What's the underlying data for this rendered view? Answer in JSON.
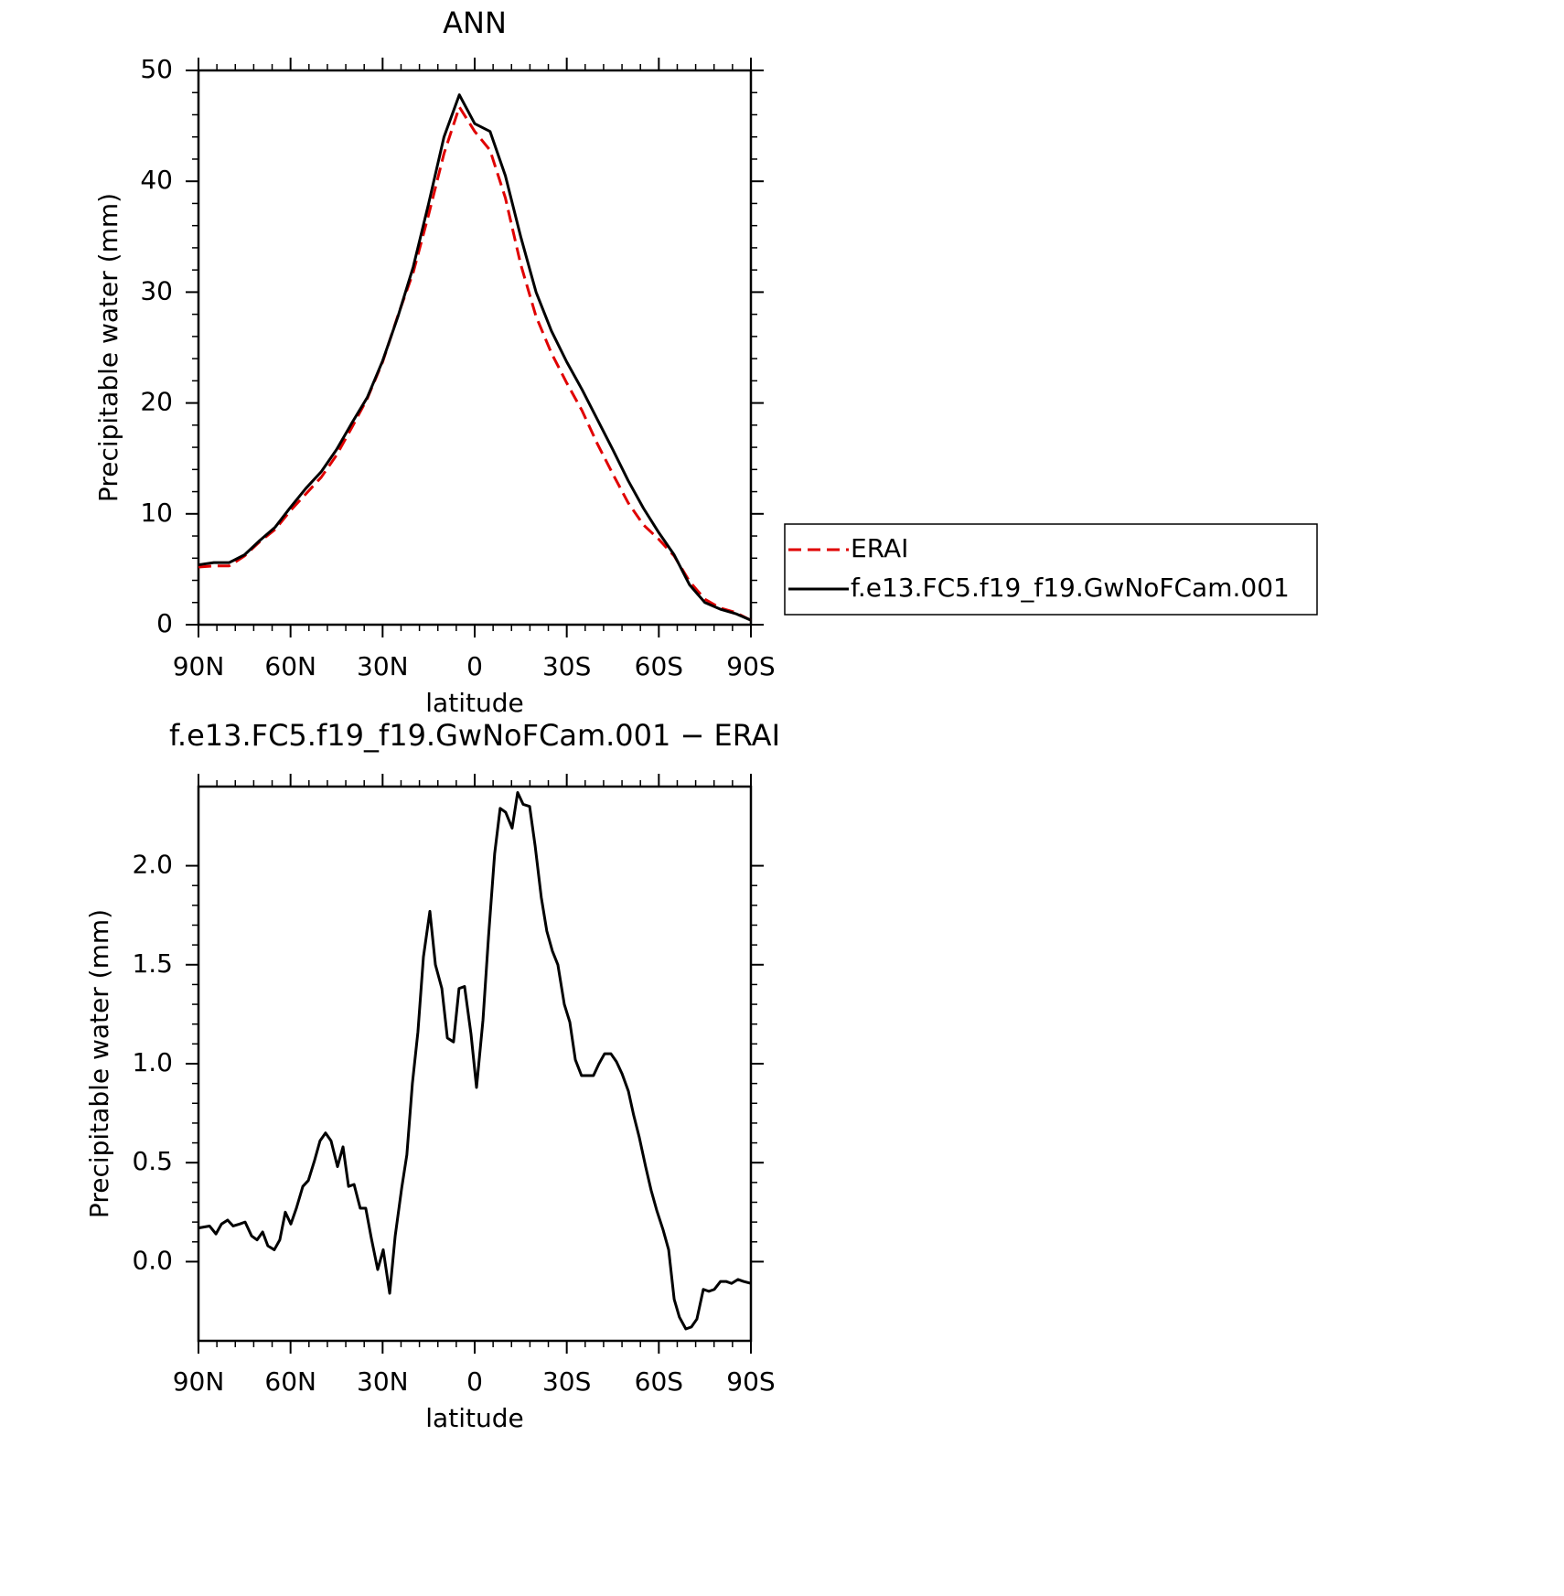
{
  "chart_data": [
    {
      "type": "line",
      "title": "ANN",
      "xlabel": "latitude",
      "ylabel": "Precipitable water (mm)",
      "x": [
        90,
        85,
        80,
        75,
        70,
        65,
        60,
        55,
        50,
        45,
        40,
        35,
        30,
        25,
        20,
        15,
        10,
        5,
        0,
        -5,
        -10,
        -15,
        -20,
        -25,
        -30,
        -35,
        -40,
        -45,
        -50,
        -55,
        -60,
        -65,
        -70,
        -75,
        -80,
        -85,
        -90
      ],
      "xlim": [
        90,
        -90
      ],
      "xticks": [
        {
          "value": 90,
          "label": "90N"
        },
        {
          "value": 60,
          "label": "60N"
        },
        {
          "value": 30,
          "label": "30N"
        },
        0,
        {
          "value": -30,
          "label": "30S"
        },
        {
          "value": -60,
          "label": "60S"
        },
        {
          "value": -90,
          "label": "90S"
        }
      ],
      "ylim": [
        0,
        50
      ],
      "yticks": [
        0,
        10,
        20,
        30,
        40,
        50
      ],
      "legend": "right",
      "series": [
        {
          "name": "ERAI",
          "color": "#e00000",
          "style": "dashed",
          "values": [
            5.2,
            5.3,
            5.3,
            6.2,
            7.5,
            8.6,
            10.3,
            11.8,
            13.3,
            15.3,
            17.8,
            20.4,
            23.7,
            27.9,
            31.8,
            37,
            42.5,
            46.7,
            44.5,
            42.8,
            38.5,
            32.5,
            27.8,
            24.5,
            21.8,
            19.3,
            16.3,
            13.6,
            11,
            9,
            7.7,
            6.2,
            3.9,
            2.3,
            1.5,
            1.1,
            0.4
          ]
        },
        {
          "name": "f.e13.FC5.f19_f19.GwNoFCam.001",
          "color": "#000000",
          "style": "solid",
          "values": [
            5.4,
            5.6,
            5.6,
            6.3,
            7.6,
            8.8,
            10.6,
            12.3,
            13.8,
            15.8,
            18.2,
            20.5,
            23.8,
            27.8,
            32.3,
            38,
            44,
            47.8,
            45.2,
            44.5,
            40.5,
            35,
            30,
            26.5,
            23.7,
            21.2,
            18.5,
            15.8,
            13,
            10.5,
            8.3,
            6.3,
            3.6,
            2.0,
            1.4,
            1.0,
            0.4
          ]
        }
      ]
    },
    {
      "type": "line",
      "title": "f.e13.FC5.f19_f19.GwNoFCam.001 − ERAI",
      "xlabel": "latitude",
      "ylabel": "Precipitable water (mm)",
      "x": [
        90,
        86.4,
        84.3,
        82.5,
        80.5,
        78.7,
        76.6,
        74.8,
        72.7,
        70.9,
        69.1,
        67.4,
        65.3,
        63.5,
        61.7,
        59.9,
        58.1,
        56,
        54.2,
        52.2,
        50.4,
        48.6,
        46.8,
        44.7,
        42.9,
        41.1,
        39.3,
        37.3,
        35.5,
        33.7,
        31.6,
        29.8,
        27.7,
        25.9,
        23.8,
        22.1,
        20.3,
        18.5,
        16.7,
        14.6,
        12.8,
        10.7,
        8.9,
        6.9,
        5.1,
        3.3,
        1.2,
        -0.6,
        -2.7,
        -4.5,
        -6.5,
        -8.3,
        -10.1,
        -12.2,
        -14,
        -15.8,
        -17.9,
        -19.7,
        -21.7,
        -23.5,
        -25.3,
        -27.1,
        -29.2,
        -31,
        -32.8,
        -34.8,
        -38.7,
        -40.5,
        -42.3,
        -44.4,
        -46.2,
        -48,
        -50.1,
        -51.8,
        -53.6,
        -55.7,
        -57.5,
        -59.3,
        -61.4,
        -63.2,
        -65,
        -66.7,
        -68.8,
        -70.6,
        -72.4,
        -74.5,
        -76.3,
        -78.1,
        -80.1,
        -81.9,
        -83.7,
        -85.8,
        -87.6,
        -90
      ],
      "xlim": [
        90,
        -90
      ],
      "xticks": [
        {
          "value": 90,
          "label": "90N"
        },
        {
          "value": 60,
          "label": "60N"
        },
        {
          "value": 30,
          "label": "30N"
        },
        0,
        {
          "value": -30,
          "label": "30S"
        },
        {
          "value": -60,
          "label": "60S"
        },
        {
          "value": -90,
          "label": "90S"
        }
      ],
      "ylim": [
        -0.4,
        2.4
      ],
      "yticks": [
        {
          "value": 0,
          "label": "0.0"
        },
        0.5,
        {
          "value": 1,
          "label": "1.0"
        },
        1.5,
        {
          "value": 2,
          "label": "2.0"
        }
      ],
      "series": [
        {
          "color": "#000000",
          "style": "solid",
          "values": [
            0.17,
            0.18,
            0.14,
            0.19,
            0.21,
            0.18,
            0.19,
            0.2,
            0.13,
            0.11,
            0.15,
            0.08,
            0.06,
            0.11,
            0.25,
            0.19,
            0.27,
            0.38,
            0.41,
            0.51,
            0.61,
            0.65,
            0.61,
            0.48,
            0.58,
            0.38,
            0.39,
            0.27,
            0.27,
            0.12,
            -0.04,
            0.06,
            -0.16,
            0.13,
            0.37,
            0.54,
            0.9,
            1.16,
            1.54,
            1.77,
            1.5,
            1.38,
            1.13,
            1.11,
            1.38,
            1.39,
            1.15,
            0.88,
            1.22,
            1.64,
            2.06,
            2.29,
            2.27,
            2.19,
            2.37,
            2.31,
            2.3,
            2.1,
            1.84,
            1.67,
            1.57,
            1.5,
            1.3,
            1.21,
            1.02,
            0.94,
            0.94,
            1.0,
            1.05,
            1.05,
            1.01,
            0.95,
            0.86,
            0.74,
            0.63,
            0.48,
            0.36,
            0.26,
            0.16,
            0.06,
            -0.19,
            -0.28,
            -0.34,
            -0.33,
            -0.29,
            -0.14,
            -0.15,
            -0.14,
            -0.1,
            -0.1,
            -0.11,
            -0.09,
            -0.1,
            -0.11
          ]
        }
      ]
    }
  ]
}
